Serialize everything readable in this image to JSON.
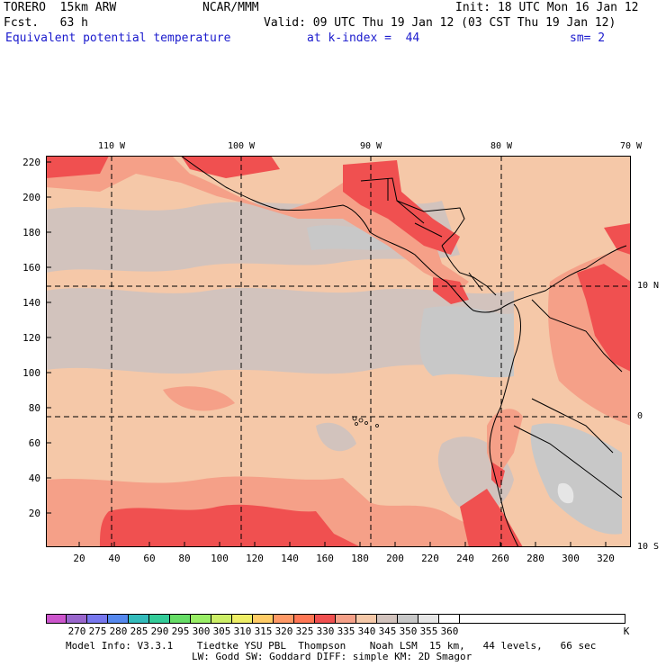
{
  "header": {
    "model": "TORERO  15km ARW",
    "org": "NCAR/MMM",
    "init": "Init: 18 UTC Mon 16 Jan 12",
    "fcst": "Fcst.   63 h",
    "valid": "Valid: 09 UTC Thu 19 Jan 12 (03 CST Thu 19 Jan 12)",
    "field": "Equivalent potential temperature",
    "level": "at k-index =  44",
    "smooth": "sm= 2"
  },
  "map": {
    "lon_labels": [
      "110 W",
      "100 W",
      "90 W",
      "80 W",
      "70 W"
    ],
    "lat_labels": [
      "10 N",
      "0",
      "10 S"
    ],
    "y_ticks": [
      "220",
      "200",
      "180",
      "160",
      "140",
      "120",
      "100",
      "80",
      "60",
      "40",
      "20"
    ],
    "x_ticks": [
      "20",
      "40",
      "60",
      "80",
      "100",
      "120",
      "140",
      "160",
      "180",
      "200",
      "220",
      "240",
      "260",
      "280",
      "300",
      "320"
    ]
  },
  "colorbar": {
    "labels": [
      "270",
      "275",
      "280",
      "285",
      "290",
      "295",
      "300",
      "305",
      "310",
      "315",
      "320",
      "325",
      "330",
      "335",
      "340",
      "345",
      "350",
      "355",
      "360"
    ],
    "unit": "K",
    "colors": [
      "#cc55cc",
      "#9966cc",
      "#7777ee",
      "#5588ee",
      "#33bbbb",
      "#33cc99",
      "#66dd66",
      "#99ee66",
      "#ccee66",
      "#eeee66",
      "#ffcc66",
      "#ff9966",
      "#ff7755",
      "#f05050",
      "#f5a088",
      "#f5c8a8",
      "#d2c3bd",
      "#c8c8c8",
      "#e6e6e6",
      "#ffffff"
    ]
  },
  "footer": {
    "line1": "Model Info: V3.3.1    Tiedtke YSU PBL  Thompson    Noah LSM  15 km,   44 levels,   66 sec",
    "line2": "LW: Godd SW: Goddard DIFF: simple KM: 2D Smagor"
  }
}
